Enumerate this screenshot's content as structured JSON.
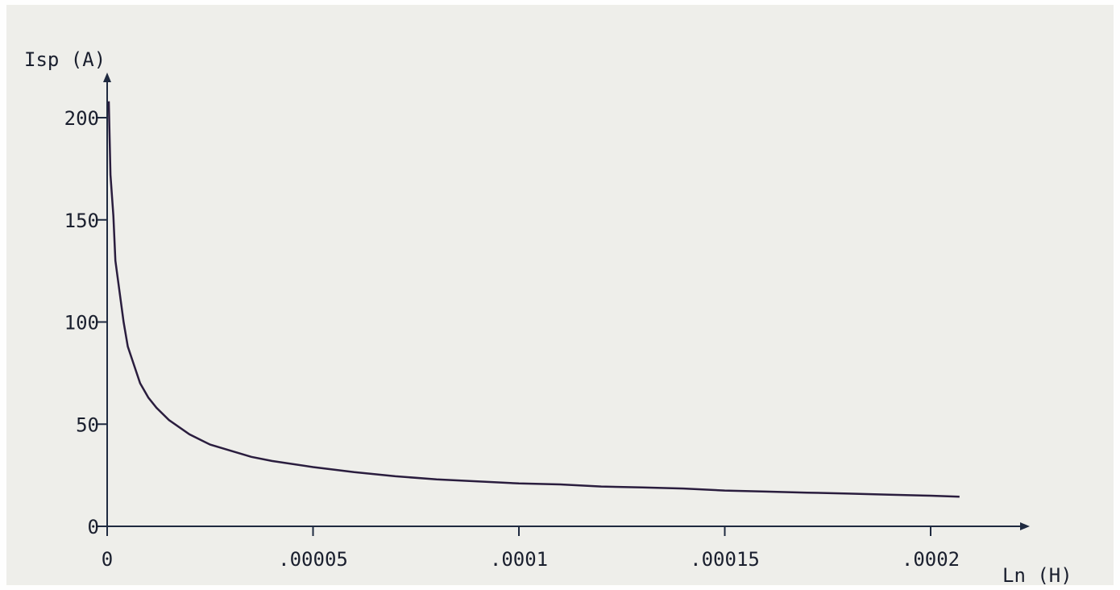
{
  "chart_data": {
    "type": "line",
    "title": "",
    "xlabel": "Ln (H)",
    "ylabel": "Isp (A)",
    "xlim": [
      0,
      0.000222
    ],
    "ylim": [
      0,
      220
    ],
    "x_ticks": [
      {
        "value": 0,
        "label": "0"
      },
      {
        "value": 5e-05,
        "label": ".00005"
      },
      {
        "value": 0.0001,
        "label": ".0001"
      },
      {
        "value": 0.00015,
        "label": ".00015"
      },
      {
        "value": 0.0002,
        "label": ".0002"
      }
    ],
    "y_ticks": [
      {
        "value": 0,
        "label": "0"
      },
      {
        "value": 50,
        "label": "50"
      },
      {
        "value": 100,
        "label": "100"
      },
      {
        "value": 150,
        "label": "150"
      },
      {
        "value": 200,
        "label": "200"
      }
    ],
    "grid": false,
    "series": [
      {
        "color": "#2a1d3e",
        "x": [
          4e-07,
          8e-07,
          1.5e-06,
          2e-06,
          3e-06,
          4e-06,
          5e-06,
          6e-06,
          8e-06,
          1e-05,
          1.2e-05,
          1.5e-05,
          2e-05,
          2.5e-05,
          3e-05,
          3.5e-05,
          4e-05,
          5e-05,
          6e-05,
          7e-05,
          8e-05,
          9e-05,
          0.0001,
          0.00011,
          0.00012,
          0.00013,
          0.00014,
          0.00015,
          0.00016,
          0.00017,
          0.00018,
          0.00019,
          0.0002,
          0.000207
        ],
        "y": [
          208,
          172,
          152,
          130,
          115,
          100,
          88,
          82,
          70,
          63,
          58,
          52,
          45,
          40,
          37,
          34,
          32,
          29,
          26.5,
          24.5,
          23,
          22,
          21,
          20.5,
          19.5,
          19,
          18.5,
          17.5,
          17,
          16.5,
          16,
          15.5,
          15,
          14.5
        ]
      }
    ]
  }
}
